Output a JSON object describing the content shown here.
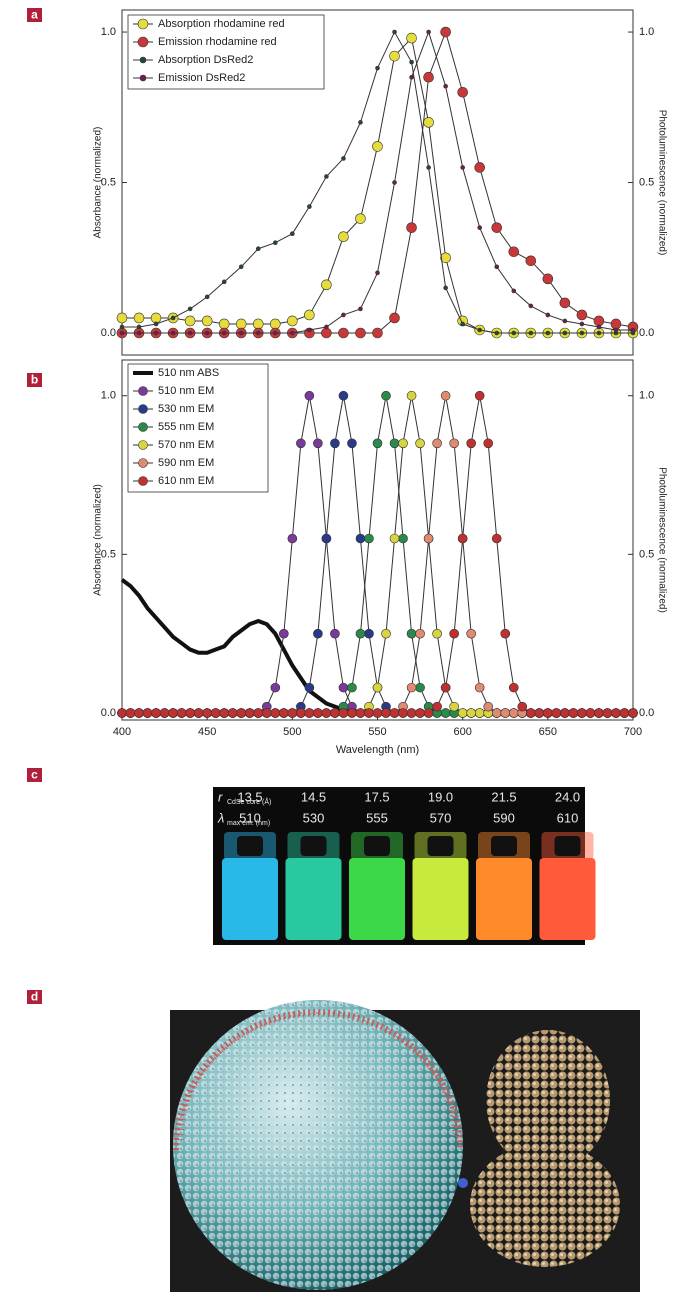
{
  "chart_data": [
    {
      "type": "line",
      "panel_label": "a",
      "y_label": "Absorbance (normalized)",
      "y2_label": "Photoluminescence (normalized)",
      "x": [
        400,
        410,
        420,
        430,
        440,
        450,
        460,
        470,
        480,
        490,
        500,
        510,
        520,
        530,
        540,
        550,
        560,
        570,
        580,
        590,
        600,
        610,
        620,
        630,
        640,
        650,
        660,
        670,
        680,
        690,
        700
      ],
      "xlim": [
        400,
        700
      ],
      "ylim": [
        0,
        1.06
      ],
      "y2lim": [
        0,
        1.06
      ],
      "yticks": [
        {
          "value": 0,
          "label": "0.0"
        },
        {
          "value": 0.5,
          "label": "0.5"
        },
        {
          "value": 1,
          "label": "1.0"
        }
      ],
      "y2ticks": [
        {
          "value": 0,
          "label": "0.0"
        },
        {
          "value": 0.5,
          "label": "0.5"
        },
        {
          "value": 1,
          "label": "1.0"
        }
      ],
      "legend": "upper left",
      "series": [
        {
          "name": "Absorption rhodamine red",
          "color": "#e6dc3c",
          "values": [
            0.05,
            0.05,
            0.05,
            0.05,
            0.04,
            0.04,
            0.03,
            0.03,
            0.03,
            0.03,
            0.04,
            0.06,
            0.16,
            0.32,
            0.38,
            0.62,
            0.92,
            0.98,
            0.7,
            0.25,
            0.04,
            0.01,
            0,
            0,
            0,
            0,
            0,
            0,
            0,
            0,
            0
          ]
        },
        {
          "name": "Emission rhodamine red",
          "color": "#c83838",
          "axis": "y2",
          "values": [
            0,
            0,
            0,
            0,
            0,
            0,
            0,
            0,
            0,
            0,
            0,
            0,
            0,
            0,
            0,
            0,
            0.05,
            0.35,
            0.85,
            1,
            0.8,
            0.55,
            0.35,
            0.27,
            0.24,
            0.18,
            0.1,
            0.06,
            0.04,
            0.03,
            0.02
          ]
        },
        {
          "name": "Absorption DsRed2",
          "color": "#24483a",
          "values": [
            0.02,
            0.02,
            0.03,
            0.05,
            0.08,
            0.12,
            0.17,
            0.22,
            0.28,
            0.3,
            0.33,
            0.42,
            0.52,
            0.58,
            0.7,
            0.88,
            1,
            0.9,
            0.55,
            0.15,
            0.03,
            0.01,
            0,
            0,
            0,
            0,
            0,
            0,
            0,
            0,
            0
          ]
        },
        {
          "name": "Emission DsRed2",
          "color": "#6a2052",
          "axis": "y2",
          "values": [
            0,
            0,
            0,
            0,
            0,
            0,
            0,
            0,
            0,
            0,
            0,
            0.01,
            0.02,
            0.06,
            0.08,
            0.2,
            0.5,
            0.85,
            1,
            0.82,
            0.55,
            0.35,
            0.22,
            0.14,
            0.09,
            0.06,
            0.04,
            0.03,
            0.02,
            0.01,
            0.01
          ]
        }
      ]
    },
    {
      "type": "line",
      "panel_label": "b",
      "x_label": "Wavelength (nm)",
      "y_label": "Absorbance (normalized)",
      "y2_label": "Photoluminescence (normalized)",
      "x": [
        400,
        405,
        410,
        415,
        420,
        425,
        430,
        435,
        440,
        445,
        450,
        455,
        460,
        465,
        470,
        475,
        480,
        485,
        490,
        495,
        500,
        505,
        510,
        515,
        520,
        525,
        530,
        535,
        540,
        545,
        550,
        555,
        560,
        565,
        570,
        575,
        580,
        585,
        590,
        595,
        600,
        605,
        610,
        615,
        620,
        625,
        630,
        635,
        640,
        645,
        650,
        655,
        660,
        665,
        670,
        675,
        680,
        685,
        690,
        695,
        700
      ],
      "xlim": [
        400,
        700
      ],
      "xticks": [
        400,
        450,
        500,
        550,
        600,
        650,
        700
      ],
      "ylim": [
        0,
        1.1
      ],
      "y2lim": [
        0,
        1.1
      ],
      "yticks": [
        {
          "value": 0,
          "label": "0.0"
        },
        {
          "value": 0.5,
          "label": "0.5"
        },
        {
          "value": 1,
          "label": "1.0"
        }
      ],
      "y2ticks": [
        {
          "value": 0,
          "label": "0.0"
        },
        {
          "value": 0.5,
          "label": "0.5"
        },
        {
          "value": 1,
          "label": "1.0"
        }
      ],
      "legend": "upper left",
      "series": [
        {
          "name": "510 nm ABS",
          "color": "#111111",
          "values": [
            0.42,
            0.4,
            0.37,
            0.33,
            0.3,
            0.27,
            0.24,
            0.22,
            0.2,
            0.19,
            0.19,
            0.2,
            0.21,
            0.24,
            0.26,
            0.28,
            0.29,
            0.28,
            0.25,
            0.2,
            0.15,
            0.11,
            0.07,
            0.05,
            0.03,
            0.02,
            0.01,
            0,
            0,
            0,
            0,
            0,
            0,
            0,
            0,
            0,
            0,
            0,
            0,
            0,
            0,
            0,
            0,
            0,
            0,
            0,
            0,
            0,
            0,
            0,
            0,
            0,
            0,
            0,
            0,
            0,
            0,
            0,
            0,
            0,
            0
          ]
        },
        {
          "name": "510 nm EM",
          "color": "#7a3a9a",
          "axis": "y2",
          "values": [
            0,
            0,
            0,
            0,
            0,
            0,
            0,
            0,
            0,
            0,
            0,
            0,
            0,
            0,
            0,
            0,
            0,
            0.02,
            0.08,
            0.25,
            0.55,
            0.85,
            1,
            0.85,
            0.55,
            0.25,
            0.08,
            0.02,
            0,
            0,
            0,
            0,
            0,
            0,
            0,
            0,
            0,
            0,
            0,
            0,
            0,
            0,
            0,
            0,
            0,
            0,
            0,
            0,
            0,
            0,
            0,
            0,
            0,
            0,
            0,
            0,
            0,
            0,
            0,
            0,
            0
          ]
        },
        {
          "name": "530 nm EM",
          "color": "#2a3a8a",
          "axis": "y2",
          "values": [
            0,
            0,
            0,
            0,
            0,
            0,
            0,
            0,
            0,
            0,
            0,
            0,
            0,
            0,
            0,
            0,
            0,
            0,
            0,
            0,
            0,
            0.02,
            0.08,
            0.25,
            0.55,
            0.85,
            1,
            0.85,
            0.55,
            0.25,
            0.08,
            0.02,
            0,
            0,
            0,
            0,
            0,
            0,
            0,
            0,
            0,
            0,
            0,
            0,
            0,
            0,
            0,
            0,
            0,
            0,
            0,
            0,
            0,
            0,
            0,
            0,
            0,
            0,
            0,
            0,
            0
          ]
        },
        {
          "name": "555 nm EM",
          "color": "#2a8a4a",
          "axis": "y2",
          "values": [
            0,
            0,
            0,
            0,
            0,
            0,
            0,
            0,
            0,
            0,
            0,
            0,
            0,
            0,
            0,
            0,
            0,
            0,
            0,
            0,
            0,
            0,
            0,
            0,
            0,
            0,
            0.02,
            0.08,
            0.25,
            0.55,
            0.85,
            1,
            0.85,
            0.55,
            0.25,
            0.08,
            0.02,
            0,
            0,
            0,
            0,
            0,
            0,
            0,
            0,
            0,
            0,
            0,
            0,
            0,
            0,
            0,
            0,
            0,
            0,
            0,
            0,
            0,
            0,
            0,
            0
          ]
        },
        {
          "name": "570 nm EM",
          "color": "#d8d440",
          "axis": "y2",
          "values": [
            0,
            0,
            0,
            0,
            0,
            0,
            0,
            0,
            0,
            0,
            0,
            0,
            0,
            0,
            0,
            0,
            0,
            0,
            0,
            0,
            0,
            0,
            0,
            0,
            0,
            0,
            0,
            0,
            0,
            0.02,
            0.08,
            0.25,
            0.55,
            0.85,
            1,
            0.85,
            0.55,
            0.25,
            0.08,
            0.02,
            0,
            0,
            0,
            0,
            0,
            0,
            0,
            0,
            0,
            0,
            0,
            0,
            0,
            0,
            0,
            0,
            0,
            0,
            0,
            0,
            0
          ]
        },
        {
          "name": "590 nm EM",
          "color": "#e08a72",
          "axis": "y2",
          "values": [
            0,
            0,
            0,
            0,
            0,
            0,
            0,
            0,
            0,
            0,
            0,
            0,
            0,
            0,
            0,
            0,
            0,
            0,
            0,
            0,
            0,
            0,
            0,
            0,
            0,
            0,
            0,
            0,
            0,
            0,
            0,
            0,
            0,
            0.02,
            0.08,
            0.25,
            0.55,
            0.85,
            1,
            0.85,
            0.55,
            0.25,
            0.08,
            0.02,
            0,
            0,
            0,
            0,
            0,
            0,
            0,
            0,
            0,
            0,
            0,
            0,
            0,
            0,
            0,
            0,
            0
          ]
        },
        {
          "name": "610 nm EM",
          "color": "#c03030",
          "axis": "y2",
          "values": [
            0,
            0,
            0,
            0,
            0,
            0,
            0,
            0,
            0,
            0,
            0,
            0,
            0,
            0,
            0,
            0,
            0,
            0,
            0,
            0,
            0,
            0,
            0,
            0,
            0,
            0,
            0,
            0,
            0,
            0,
            0,
            0,
            0,
            0,
            0,
            0,
            0,
            0.02,
            0.08,
            0.25,
            0.55,
            0.85,
            1,
            0.85,
            0.55,
            0.25,
            0.08,
            0.02,
            0,
            0,
            0,
            0,
            0,
            0,
            0,
            0,
            0,
            0,
            0,
            0,
            0
          ]
        }
      ]
    }
  ],
  "panel_c": {
    "panel_label": "c",
    "radius_symbol": "r",
    "radius_subscript": "CdSe core (Å)",
    "lambda_symbol": "λ",
    "lambda_subscript": "max em. (nm)",
    "radii": [
      "13.5",
      "14.5",
      "17.5",
      "19.0",
      "21.5",
      "24.0"
    ],
    "wavelengths": [
      "510",
      "530",
      "555",
      "570",
      "590",
      "610"
    ]
  },
  "panel_d": {
    "panel_label": "d"
  }
}
